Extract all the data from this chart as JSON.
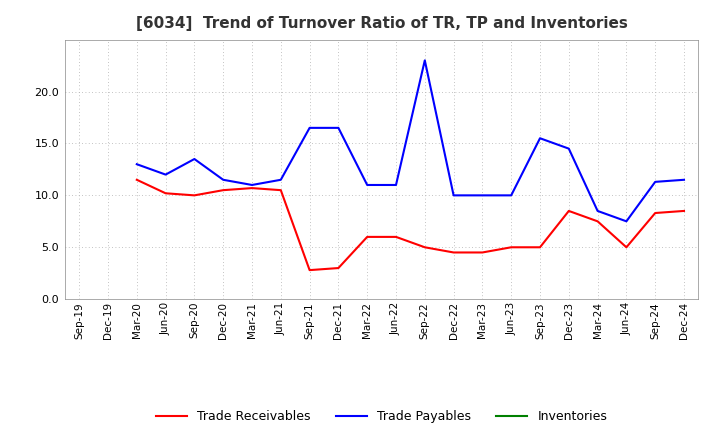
{
  "title": "[6034]  Trend of Turnover Ratio of TR, TP and Inventories",
  "x_labels": [
    "Sep-19",
    "Dec-19",
    "Mar-20",
    "Jun-20",
    "Sep-20",
    "Dec-20",
    "Mar-21",
    "Jun-21",
    "Sep-21",
    "Dec-21",
    "Mar-22",
    "Jun-22",
    "Sep-22",
    "Dec-22",
    "Mar-23",
    "Jun-23",
    "Sep-23",
    "Dec-23",
    "Mar-24",
    "Jun-24",
    "Sep-24",
    "Dec-24"
  ],
  "trade_receivables": [
    null,
    null,
    11.5,
    10.2,
    10.0,
    10.5,
    10.7,
    10.5,
    2.8,
    3.0,
    6.0,
    6.0,
    5.0,
    4.5,
    4.5,
    5.0,
    5.0,
    8.5,
    7.5,
    5.0,
    8.3,
    8.5
  ],
  "trade_payables": [
    null,
    null,
    13.0,
    12.0,
    13.5,
    11.5,
    11.0,
    11.5,
    16.5,
    16.5,
    11.0,
    11.0,
    23.0,
    10.0,
    10.0,
    10.0,
    15.5,
    14.5,
    8.5,
    7.5,
    11.3,
    11.5
  ],
  "inventories": [
    null,
    null,
    null,
    null,
    null,
    null,
    null,
    null,
    null,
    null,
    null,
    null,
    null,
    null,
    null,
    null,
    null,
    null,
    null,
    null,
    null,
    null
  ],
  "tr_color": "#ff0000",
  "tp_color": "#0000ff",
  "inv_color": "#008000",
  "ylim": [
    0,
    25
  ],
  "yticks": [
    0.0,
    5.0,
    10.0,
    15.0,
    20.0
  ],
  "background_color": "#ffffff",
  "grid_color": "#b0b0b0",
  "title_fontsize": 11,
  "tick_fontsize": 7.5
}
